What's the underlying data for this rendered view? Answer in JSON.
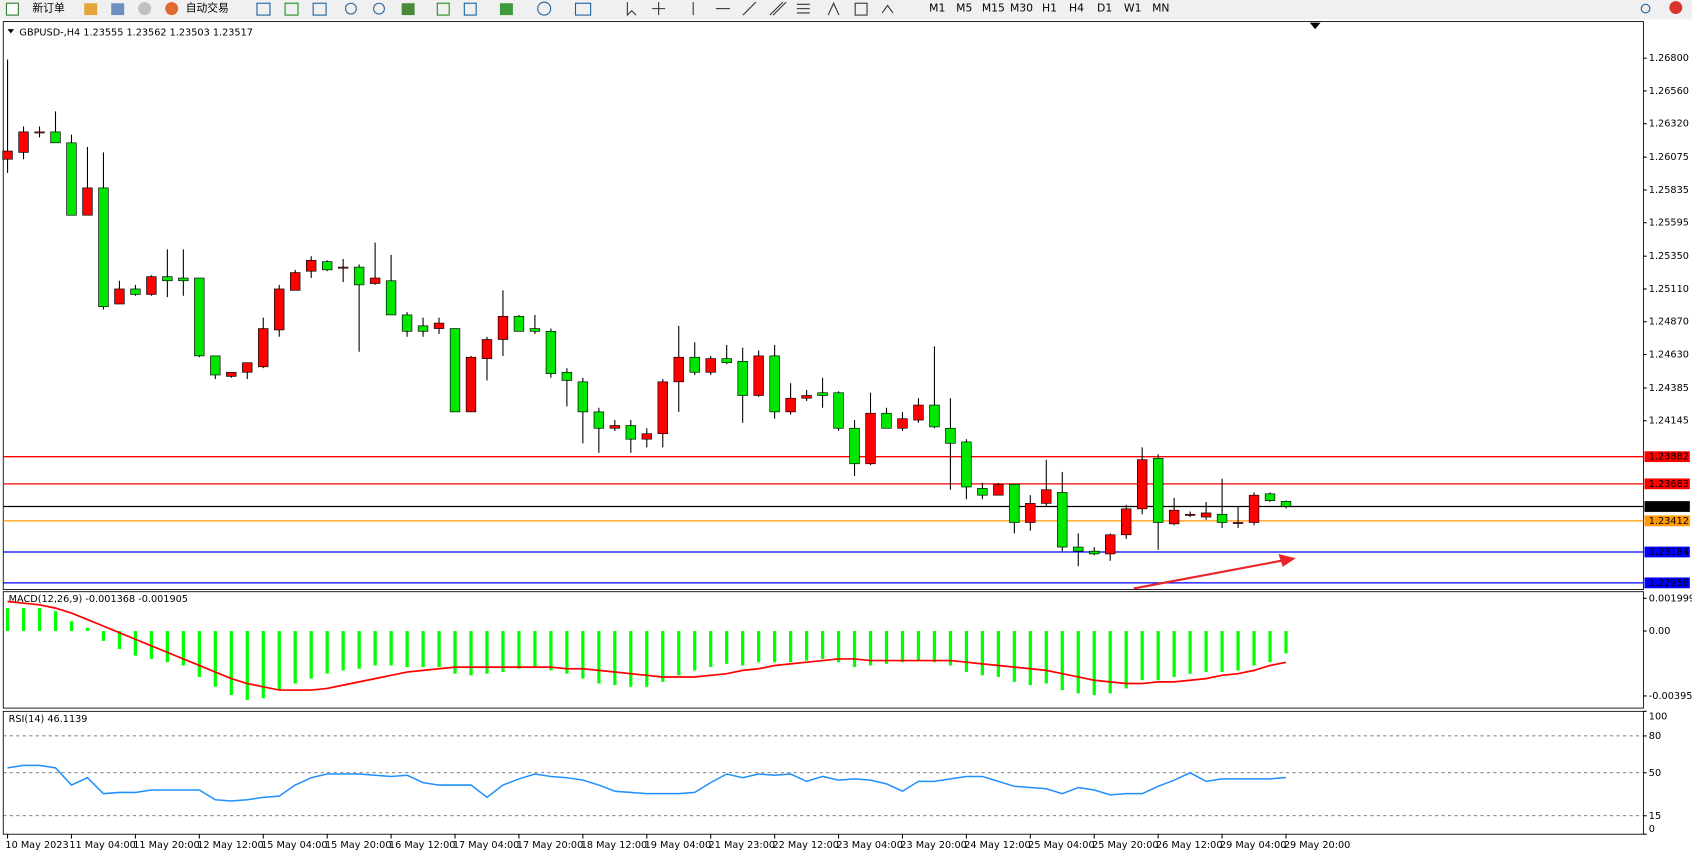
{
  "toolbar": {
    "new_order": "新订单",
    "auto_trading": "自动交易",
    "timeframes": [
      "M1",
      "M5",
      "M15",
      "M30",
      "H1",
      "H4",
      "D1",
      "W1",
      "MN"
    ]
  },
  "chart_data": [
    {
      "type": "candlestick",
      "title": "GBPUSD-,H4 1.23555 1.23562 1.23503 1.23517",
      "categories": [
        "10 May 2023",
        null,
        null,
        null,
        "11 May 04:00",
        null,
        null,
        null,
        "11 May 20:00",
        null,
        null,
        null,
        "12 May 12:00",
        null,
        null,
        null,
        "15 May 04:00",
        null,
        null,
        null,
        "15 May 20:00",
        null,
        null,
        null,
        "16 May 12:00",
        null,
        null,
        null,
        "17 May 04:00",
        null,
        null,
        null,
        "17 May 20:00",
        null,
        null,
        null,
        "18 May 12:00",
        null,
        null,
        null,
        "19 May 04:00",
        null,
        null,
        null,
        "21 May 23:00",
        null,
        null,
        null,
        "22 May 12:00",
        null,
        null,
        null,
        "23 May 04:00",
        null,
        null,
        null,
        "23 May 20:00",
        null,
        null,
        null,
        "24 May 12:00",
        null,
        null,
        null,
        "25 May 04:00",
        null,
        null,
        null,
        "25 May 20:00",
        null,
        null,
        null,
        "26 May 12:00",
        null,
        null,
        null,
        "29 May 04:00",
        null,
        null,
        null,
        "29 May 20:00"
      ],
      "open": [
        1.2606,
        1.2611,
        1.2626,
        1.2626,
        1.2618,
        1.2565,
        1.2585,
        1.25,
        1.2511,
        1.2507,
        1.252,
        1.2519,
        1.2519,
        1.2462,
        1.2447,
        1.245,
        1.2454,
        1.2481,
        1.251,
        1.2524,
        1.2531,
        1.2527,
        1.2527,
        1.2515,
        1.2517,
        1.2492,
        1.2484,
        1.2482,
        1.2482,
        1.2421,
        1.246,
        1.2474,
        1.2491,
        1.2482,
        1.248,
        1.245,
        1.2443,
        1.2421,
        1.2409,
        1.2411,
        1.2401,
        1.2405,
        1.2443,
        1.2461,
        1.245,
        1.246,
        1.2458,
        1.2433,
        1.2462,
        1.2421,
        1.2431,
        1.2435,
        1.2435,
        1.2409,
        1.2383,
        1.242,
        1.2409,
        1.2415,
        1.2426,
        1.2409,
        1.2399,
        1.2365,
        1.236,
        1.2368,
        1.234,
        1.2354,
        1.2362,
        1.2322,
        1.2319,
        1.2317,
        1.2331,
        1.235,
        1.2387,
        1.2339,
        1.2346,
        1.2344,
        1.2346,
        1.234,
        1.234,
        1.2361,
        1.23555
      ],
      "high": [
        1.2679,
        1.263,
        1.263,
        1.2641,
        1.2624,
        1.2615,
        1.2611,
        1.2517,
        1.2514,
        1.2521,
        1.254,
        1.254,
        1.2519,
        1.2462,
        1.245,
        1.2457,
        1.249,
        1.2514,
        1.2525,
        1.2535,
        1.2532,
        1.2533,
        1.2529,
        1.2545,
        1.2536,
        1.2494,
        1.249,
        1.249,
        1.2482,
        1.2462,
        1.2476,
        1.251,
        1.2492,
        1.2492,
        1.2482,
        1.2453,
        1.2446,
        1.2424,
        1.2415,
        1.2415,
        1.2409,
        1.2445,
        1.2484,
        1.2472,
        1.2462,
        1.247,
        1.2468,
        1.2466,
        1.247,
        1.2442,
        1.2437,
        1.2446,
        1.2436,
        1.2415,
        1.2435,
        1.2424,
        1.2421,
        1.2431,
        1.2469,
        1.2431,
        1.2401,
        1.2369,
        1.2369,
        1.2368,
        1.236,
        1.2386,
        1.2377,
        1.2332,
        1.2322,
        1.2332,
        1.2353,
        1.2395,
        1.239,
        1.2358,
        1.2348,
        1.2355,
        1.2372,
        1.2352,
        1.2362,
        1.2362,
        1.23562
      ],
      "low": [
        1.2596,
        1.2606,
        1.2622,
        1.2618,
        1.2565,
        1.2565,
        1.2496,
        1.25,
        1.2506,
        1.2506,
        1.2505,
        1.2506,
        1.2461,
        1.2445,
        1.2446,
        1.2445,
        1.2453,
        1.2476,
        1.251,
        1.2519,
        1.2524,
        1.2516,
        1.2465,
        1.2514,
        1.2492,
        1.2476,
        1.2476,
        1.2478,
        1.2421,
        1.2421,
        1.2444,
        1.2462,
        1.248,
        1.2478,
        1.2446,
        1.2425,
        1.2398,
        1.2391,
        1.2407,
        1.2391,
        1.2395,
        1.2395,
        1.2421,
        1.2448,
        1.2448,
        1.2456,
        1.2413,
        1.2432,
        1.2416,
        1.2419,
        1.2429,
        1.2424,
        1.2407,
        1.2374,
        1.2382,
        1.2409,
        1.2407,
        1.2413,
        1.2409,
        1.2364,
        1.2357,
        1.2357,
        1.236,
        1.2332,
        1.2334,
        1.2352,
        1.2319,
        1.2308,
        1.2316,
        1.2312,
        1.2328,
        1.2346,
        1.232,
        1.2338,
        1.2344,
        1.2342,
        1.2336,
        1.2336,
        1.2338,
        1.2355,
        1.23503
      ],
      "close": [
        1.2612,
        1.2626,
        1.2626,
        1.2618,
        1.2565,
        1.2585,
        1.2498,
        1.2511,
        1.2507,
        1.252,
        1.2517,
        1.2517,
        1.2462,
        1.2448,
        1.245,
        1.2457,
        1.2482,
        1.2511,
        1.2523,
        1.2532,
        1.2525,
        1.2527,
        1.2514,
        1.2519,
        1.2492,
        1.248,
        1.248,
        1.2486,
        1.2421,
        1.2461,
        1.2474,
        1.2491,
        1.248,
        1.248,
        1.2449,
        1.2444,
        1.2421,
        1.2409,
        1.2411,
        1.2401,
        1.2405,
        1.2443,
        1.2461,
        1.245,
        1.246,
        1.2457,
        1.2433,
        1.2462,
        1.2421,
        1.2431,
        1.2433,
        1.2433,
        1.2409,
        1.2383,
        1.242,
        1.2409,
        1.2416,
        1.2426,
        1.241,
        1.2398,
        1.2366,
        1.236,
        1.2368,
        1.234,
        1.2354,
        1.2364,
        1.2322,
        1.2319,
        1.2317,
        1.2331,
        1.235,
        1.2386,
        1.234,
        1.2349,
        1.2346,
        1.2347,
        1.234,
        1.234,
        1.236,
        1.2356,
        1.23517
      ],
      "up_color": "#ff0000",
      "down_color": "#00e600",
      "ylim": [
        1.22909,
        1.27068
      ],
      "yticks": [
        {
          "value": 1.268,
          "label": "1.26800"
        },
        {
          "value": 1.2656,
          "label": "1.26560"
        },
        {
          "value": 1.2632,
          "label": "1.26320"
        },
        1.26075,
        1.25835,
        1.25595,
        {
          "value": 1.2535,
          "label": "1.25350"
        },
        {
          "value": 1.2511,
          "label": "1.25110"
        },
        {
          "value": 1.2487,
          "label": "1.24870"
        },
        {
          "value": 1.2463,
          "label": "1.24630"
        },
        1.24385,
        1.24145
      ],
      "levels": [
        {
          "value": 1.23882,
          "color": "#ff0000"
        },
        {
          "value": 1.23683,
          "color": "#ff0000"
        },
        {
          "value": 1.23517,
          "color": "#000000"
        },
        {
          "value": 1.23412,
          "color": "#ff9900"
        },
        {
          "value": 1.23184,
          "color": "#0000ff"
        },
        {
          "value": 1.22958,
          "color": "#0000ff"
        }
      ]
    },
    {
      "type": "macd",
      "title": "MACD(12,26,9) -0.001368 -0.001905",
      "histogram": {
        "color": "#00ff00",
        "values": [
          0.0014,
          0.0014,
          0.0014,
          0.0012,
          0.0006,
          0.0002,
          -0.0006,
          -0.0011,
          -0.0015,
          -0.0017,
          -0.0019,
          -0.0021,
          -0.0028,
          -0.0034,
          -0.0039,
          -0.0042,
          -0.0041,
          -0.0036,
          -0.0032,
          -0.0029,
          -0.0026,
          -0.0024,
          -0.0023,
          -0.0021,
          -0.0021,
          -0.0022,
          -0.0022,
          -0.0022,
          -0.0026,
          -0.0027,
          -0.0026,
          -0.0025,
          -0.0023,
          -0.0022,
          -0.0024,
          -0.0026,
          -0.0029,
          -0.0032,
          -0.0033,
          -0.0034,
          -0.0034,
          -0.0031,
          -0.0027,
          -0.0024,
          -0.0022,
          -0.002,
          -0.0021,
          -0.0019,
          -0.0019,
          -0.0019,
          -0.0018,
          -0.0017,
          -0.0019,
          -0.0022,
          -0.0021,
          -0.002,
          -0.0019,
          -0.0018,
          -0.0019,
          -0.0021,
          -0.0025,
          -0.0027,
          -0.0028,
          -0.0031,
          -0.0033,
          -0.0032,
          -0.0036,
          -0.0038,
          -0.0039,
          -0.0038,
          -0.0035,
          -0.003,
          -0.003,
          -0.0028,
          -0.0026,
          -0.0025,
          -0.0025,
          -0.0024,
          -0.0021,
          -0.0019,
          -0.001368
        ]
      },
      "signal": {
        "color": "#ff0000",
        "values": [
          0.0018,
          0.0017,
          0.0016,
          0.0014,
          0.0011,
          0.0007,
          0.0003,
          -0.0001,
          -0.0005,
          -0.0009,
          -0.0013,
          -0.0017,
          -0.0021,
          -0.0025,
          -0.0029,
          -0.0032,
          -0.0034,
          -0.0036,
          -0.0036,
          -0.0036,
          -0.0035,
          -0.0033,
          -0.0031,
          -0.0029,
          -0.0027,
          -0.0025,
          -0.0024,
          -0.0023,
          -0.0022,
          -0.0022,
          -0.0022,
          -0.0022,
          -0.0022,
          -0.0022,
          -0.0022,
          -0.0023,
          -0.0023,
          -0.0024,
          -0.0025,
          -0.0026,
          -0.0027,
          -0.0028,
          -0.0028,
          -0.0028,
          -0.0027,
          -0.0026,
          -0.0024,
          -0.0023,
          -0.0021,
          -0.002,
          -0.0019,
          -0.0018,
          -0.0017,
          -0.0017,
          -0.0018,
          -0.0018,
          -0.0018,
          -0.0018,
          -0.0018,
          -0.0018,
          -0.0019,
          -0.002,
          -0.0021,
          -0.0022,
          -0.0023,
          -0.0024,
          -0.0026,
          -0.0028,
          -0.003,
          -0.0031,
          -0.0032,
          -0.0032,
          -0.0031,
          -0.0031,
          -0.003,
          -0.0029,
          -0.0027,
          -0.0026,
          -0.0024,
          -0.0021,
          -0.001905
        ]
      },
      "ylim": [
        -0.0047,
        0.0024
      ],
      "yticks": [
        0.001999,
        {
          "value": 0,
          "label": "0.00"
        },
        -0.003958
      ]
    },
    {
      "type": "line",
      "title": "RSI(14) 46.1139",
      "values": [
        54,
        56,
        56,
        54,
        40,
        46,
        33,
        34,
        34,
        36,
        36,
        36,
        36,
        28,
        27,
        28,
        30,
        31,
        40,
        46,
        49,
        49,
        49,
        48,
        47,
        48,
        42,
        40,
        40,
        40,
        30,
        40,
        45,
        49,
        47,
        46,
        44,
        40,
        35,
        34,
        33,
        33,
        33,
        34,
        42,
        49,
        46,
        49,
        48,
        49,
        43,
        47,
        44,
        45,
        44,
        41,
        35,
        43,
        43,
        45,
        47,
        47,
        43,
        39,
        38,
        37,
        33,
        38,
        36,
        32,
        33,
        33,
        39,
        44,
        50,
        43,
        45,
        45,
        45,
        45,
        46.1139
      ],
      "color": "#1e90ff",
      "ylim": [
        0,
        100
      ],
      "yticks": [
        100,
        80,
        50,
        15,
        0
      ]
    }
  ]
}
